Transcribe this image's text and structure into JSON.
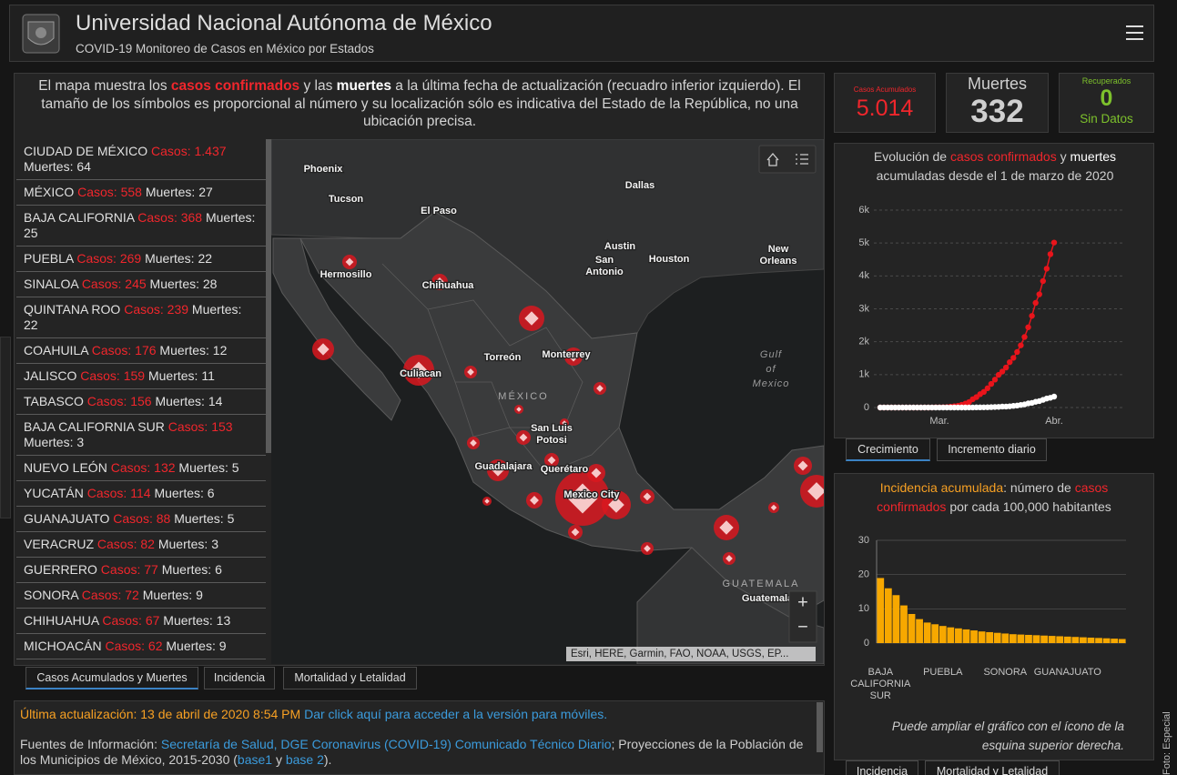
{
  "header": {
    "title": "Universidad Nacional Autónoma de México",
    "subtitle": "COVID-19 Monitoreo de Casos en México por Estados"
  },
  "intro": [
    "El mapa muestra los ",
    "casos confirmados",
    " y las ",
    "muertes",
    " a la última fecha de actualización (recuadro inferior izquierdo). El tamaño de los símbolos es proporcional al número y su localización sólo es indicativa del Estado de la República, no una ubicación precisa."
  ],
  "list": {
    "cases_label": "Casos:",
    "deaths_label": "Muertes:",
    "rows": [
      {
        "state": "CIUDAD DE MÉXICO",
        "cases": "1.437",
        "deaths": 64
      },
      {
        "state": "MÉXICO",
        "cases": 558,
        "deaths": 27
      },
      {
        "state": "BAJA CALIFORNIA",
        "cases": 368,
        "deaths": 25
      },
      {
        "state": "PUEBLA",
        "cases": 269,
        "deaths": 22
      },
      {
        "state": "SINALOA",
        "cases": 245,
        "deaths": 28
      },
      {
        "state": "QUINTANA ROO",
        "cases": 239,
        "deaths": 22
      },
      {
        "state": "COAHUILA",
        "cases": 176,
        "deaths": 12
      },
      {
        "state": "JALISCO",
        "cases": 159,
        "deaths": 11
      },
      {
        "state": "TABASCO",
        "cases": 156,
        "deaths": 14
      },
      {
        "state": "BAJA CALIFORNIA SUR",
        "cases": 153,
        "deaths": 3
      },
      {
        "state": "NUEVO LEÓN",
        "cases": 132,
        "deaths": 5
      },
      {
        "state": "YUCATÁN",
        "cases": 114,
        "deaths": 6
      },
      {
        "state": "GUANAJUATO",
        "cases": 88,
        "deaths": 5
      },
      {
        "state": "VERACRUZ",
        "cases": 82,
        "deaths": 3
      },
      {
        "state": "GUERRERO",
        "cases": 77,
        "deaths": 6
      },
      {
        "state": "SONORA",
        "cases": 72,
        "deaths": 9
      },
      {
        "state": "CHIHUAHUA",
        "cases": 67,
        "deaths": 13
      },
      {
        "state": "MICHOACÁN",
        "cases": 62,
        "deaths": 9
      }
    ]
  },
  "map": {
    "labels": [
      [
        "Phoenix"
      ],
      [
        "Tucson"
      ],
      [
        "El Paso"
      ],
      [
        "Dallas"
      ],
      [
        "Austin"
      ],
      [
        "San",
        "Antonio"
      ],
      [
        "Houston"
      ],
      [
        "New",
        "Orleans"
      ],
      [
        "Hermosillo"
      ],
      [
        "Chihuahua"
      ],
      [
        "Torreón"
      ],
      [
        "Monterrey"
      ],
      [
        "Culiacan"
      ],
      [
        "MÉXICO"
      ],
      [
        "San Luis",
        "Potosi"
      ],
      [
        "Guadalajara"
      ],
      [
        "Querétaro"
      ],
      [
        "Mexico City"
      ],
      [
        "Gulf",
        "of",
        "Mexico"
      ],
      [
        "GUATEMALA"
      ],
      [
        "Guatemala"
      ]
    ],
    "attribution": "Esri, HERE, Garmin, FAO, NOAA, USGS, EP...",
    "zoom": [
      "+",
      "−"
    ]
  },
  "tabs": {
    "main": [
      "Casos Acumulados y Muertes",
      "Incidencia",
      "Mortalidad y Letalidad"
    ],
    "growth": [
      "Crecimiento",
      "Incremento diario"
    ],
    "incidence": [
      "Incidencia",
      "Mortalidad y Letalidad"
    ]
  },
  "footer": {
    "updated": "Última actualización: 13 de abril de 2020 8:54 PM",
    "mobile_link": "Dar click aquí para acceder a la versión para móviles.",
    "sources": [
      "Fuentes de Información: ",
      "Secretaría de Salud, DGE Coronavirus (COVID-19) Comunicado Técnico Diario",
      "; Proyecciones de la Población de los Municipios de México, 2015-2030 (",
      "base1",
      " y ",
      "base 2",
      ")."
    ]
  },
  "kpis": {
    "cases_label": "Casos Acumulados",
    "cases": "5.014",
    "deaths_label": "Muertes",
    "deaths": 332,
    "recovered_label": "Recuperados",
    "recovered": 0,
    "recovered_note": "Sin Datos"
  },
  "credit": "Foto: Especial",
  "chart_data": [
    {
      "type": "line",
      "title": [
        "Evolución de ",
        "casos confirmados",
        " y ",
        "muertes",
        " acumuladas desde el 1 de marzo de 2020"
      ],
      "categories": [
        null,
        null,
        null,
        null,
        null,
        null,
        null,
        null,
        null,
        null,
        null,
        null,
        null,
        null,
        null,
        null,
        "Mar.",
        null,
        null,
        null,
        null,
        null,
        null,
        null,
        null,
        null,
        null,
        null,
        null,
        null,
        null,
        null,
        null,
        null,
        null,
        null,
        null,
        null,
        null,
        null,
        null,
        null,
        null,
        null,
        null,
        null,
        null,
        "Abr."
      ],
      "series": [
        {
          "color": "#e8141b",
          "values": [
            0,
            0,
            0,
            0,
            0,
            0,
            0,
            0,
            0,
            0,
            0,
            0,
            0,
            0,
            2,
            5,
            5,
            7,
            12,
            26,
            41,
            53,
            82,
            118,
            164,
            251,
            316,
            405,
            475,
            585,
            717,
            848,
            993,
            1094,
            1215,
            1378,
            1510,
            1688,
            1890,
            2143,
            2439,
            2785,
            3181,
            3441,
            3844,
            4219,
            4661,
            5014
          ]
        },
        {
          "color": "#ffffff",
          "values": [
            0,
            0,
            0,
            0,
            0,
            0,
            0,
            0,
            0,
            0,
            0,
            0,
            0,
            0,
            0,
            0,
            0,
            0,
            0,
            0,
            0,
            0,
            0,
            0,
            1,
            2,
            4,
            5,
            6,
            8,
            12,
            16,
            20,
            28,
            29,
            37,
            50,
            60,
            79,
            94,
            125,
            141,
            174,
            194,
            233,
            273,
            296,
            332
          ]
        }
      ],
      "ylim": [
        0,
        6000
      ],
      "yticks": [
        0,
        {
          "value": 1000,
          "label": "1k"
        },
        {
          "value": 2000,
          "label": "2k"
        },
        {
          "value": 3000,
          "label": "3k"
        },
        {
          "value": 4000,
          "label": "4k"
        },
        {
          "value": 5000,
          "label": "5k"
        },
        {
          "value": 6000,
          "label": "6k"
        }
      ],
      "grid": true
    },
    {
      "type": "bar",
      "title": [
        "Incidencia acumulada",
        ": número de ",
        "casos confirmados",
        " por cada 100,000 habitantes"
      ],
      "categories": [
        "BAJA CALIFORNIA SUR",
        null,
        null,
        null,
        null,
        null,
        null,
        null,
        "PUEBLA",
        null,
        null,
        null,
        null,
        null,
        null,
        null,
        "SONORA",
        null,
        null,
        null,
        null,
        null,
        null,
        null,
        "GUANAJUATO",
        null,
        null,
        null,
        null,
        null,
        null,
        null
      ],
      "values": [
        19,
        16,
        14,
        11,
        8.5,
        7,
        6,
        5.5,
        5,
        4.6,
        4.3,
        4,
        3.7,
        3.4,
        3.2,
        3,
        2.8,
        2.6,
        2.5,
        2.4,
        2.3,
        2.2,
        2.1,
        2,
        1.9,
        1.8,
        1.7,
        1.6,
        1.5,
        1.4,
        1.3,
        1.2
      ],
      "color": "#f7a800",
      "ylim": [
        0,
        30
      ],
      "yticks": [
        0,
        10,
        20,
        30
      ],
      "grid": true,
      "note": "Puede ampliar el gráfico con el ícono de la esquina superior derecha."
    }
  ]
}
